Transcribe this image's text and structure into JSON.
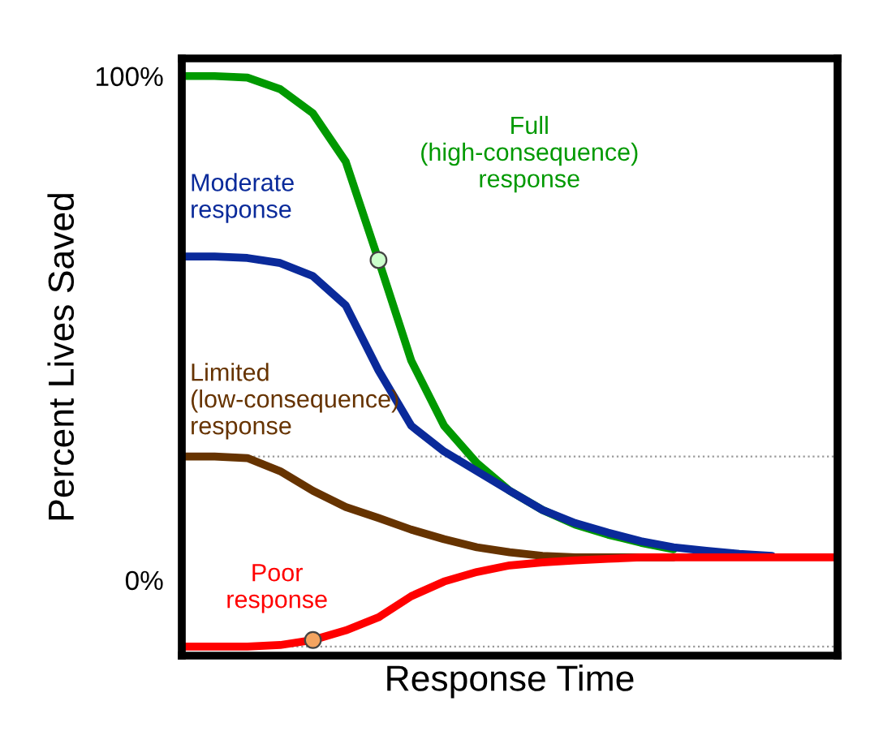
{
  "chart_data": {
    "type": "line",
    "xlabel": "Response Time",
    "ylabel": "Percent Lives Saved",
    "categories": [
      null,
      null,
      null,
      null,
      null,
      null,
      null,
      null,
      null,
      null,
      null,
      null,
      null,
      null,
      null,
      null,
      null,
      null,
      null,
      null,
      null
    ],
    "series": [
      {
        "name": "Full\n(high-consequence)\nresponse",
        "color": "#009900",
        "values": [
          100,
          100,
          99.7,
          97.4,
          92.6,
          83,
          63.5,
          43.5,
          30.6,
          23.2,
          17.7,
          13.9,
          11,
          9,
          7.4,
          6.1,
          null,
          null,
          null,
          null,
          null
        ]
      },
      {
        "name": "Moderate\nresponse",
        "color": "#0a2a9a",
        "values": [
          64.2,
          64.2,
          63.9,
          62.9,
          60.3,
          54.5,
          41.6,
          30.6,
          25.5,
          21.6,
          17.7,
          13.9,
          11.3,
          9.4,
          7.7,
          6.5,
          5.8,
          5.2,
          4.8,
          null,
          null
        ]
      },
      {
        "name": "Limited\n(low-consequence)\nresponse",
        "color": "#663300",
        "values": [
          24.5,
          24.5,
          24.2,
          21.6,
          17.7,
          14.5,
          12.3,
          10,
          8.1,
          6.5,
          5.5,
          4.8,
          4.5,
          4.5,
          4.5,
          4.5,
          null,
          null,
          null,
          null,
          null
        ]
      },
      {
        "name": "Poor\nresponse",
        "color": "#ff0000",
        "values": [
          -13.2,
          -13.2,
          -13.2,
          -12.9,
          -11.9,
          -10,
          -7.4,
          -3.2,
          -0.3,
          1.6,
          2.9,
          3.5,
          3.9,
          4.2,
          4.5,
          4.5,
          4.5,
          4.5,
          4.5,
          4.5,
          4.5
        ]
      },
      {
        "type": "scatter",
        "color": "#ccffcc",
        "values": [
          null,
          null,
          null,
          null,
          null,
          null,
          63.5,
          null,
          null,
          null,
          null,
          null,
          null,
          null,
          null,
          null,
          null,
          null,
          null,
          null,
          null
        ]
      },
      {
        "type": "scatter",
        "color": "#f4a460",
        "values": [
          null,
          null,
          null,
          null,
          -11.9,
          null,
          null,
          null,
          null,
          null,
          null,
          null,
          null,
          null,
          null,
          null,
          null,
          null,
          null,
          null,
          null
        ]
      }
    ],
    "ylim": [
      -15,
      103.5
    ],
    "yticks": [
      {
        "value": 100,
        "label": "100%"
      },
      {
        "value": 0,
        "label": "0%"
      }
    ],
    "ref_lines": [
      {
        "axis": "y",
        "value": 24.5,
        "label": null,
        "color": "#999999",
        "line_style": "dotted"
      },
      {
        "axis": "y",
        "value": -13.2,
        "label": null,
        "color": "#999999",
        "line_style": "dotted"
      }
    ],
    "grid": false,
    "legend": false
  }
}
